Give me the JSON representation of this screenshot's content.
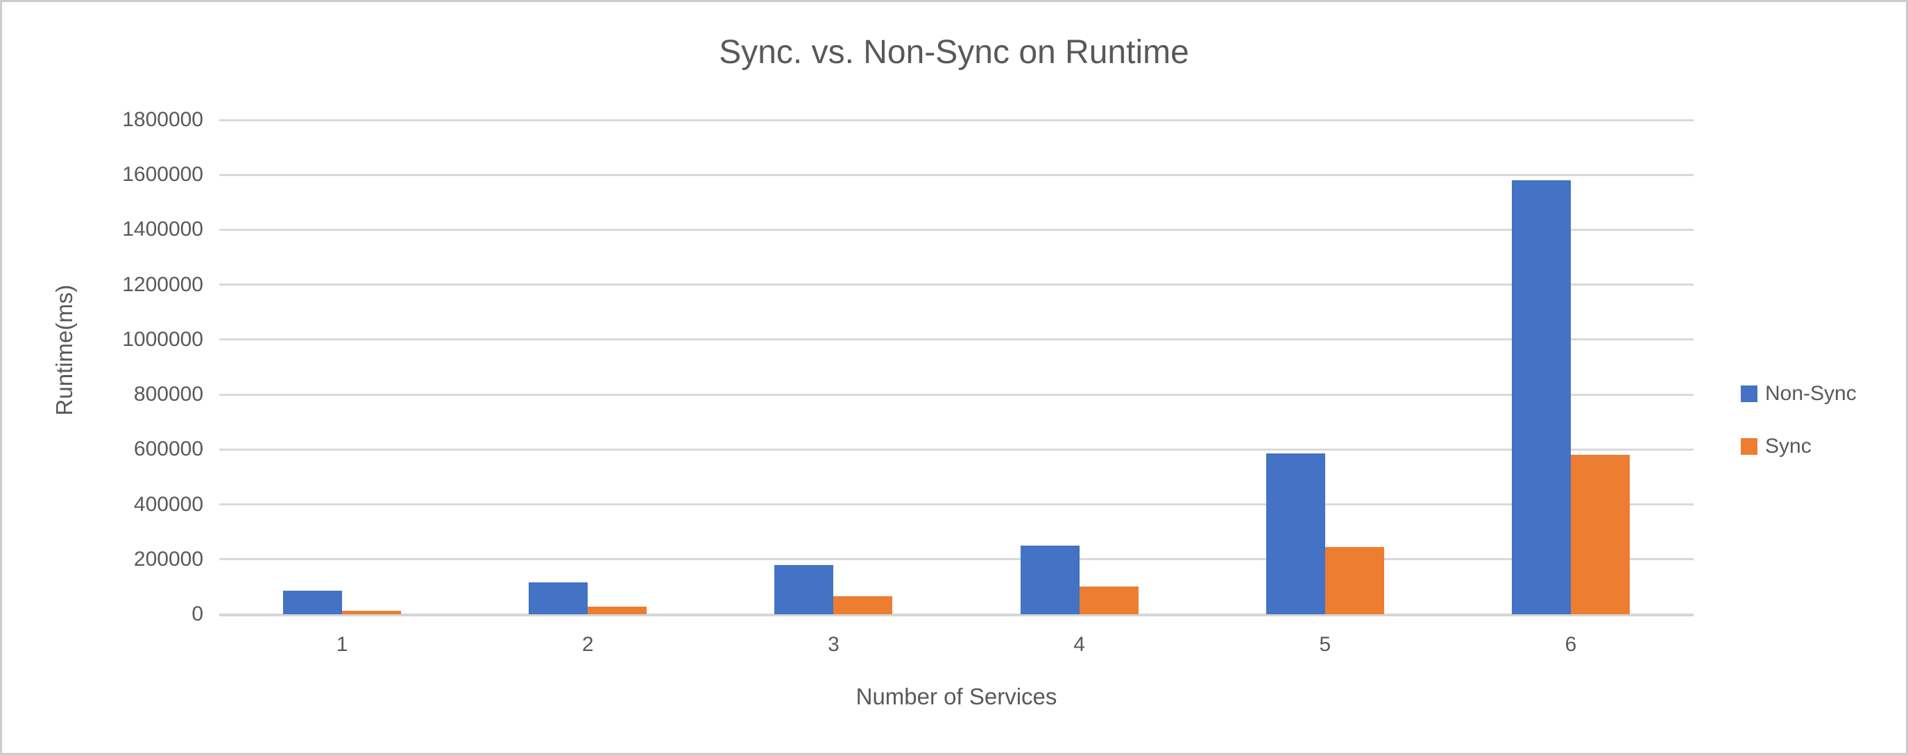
{
  "window": {
    "background": "#ffffff",
    "border_color": "#cdcdcd"
  },
  "chart_data": {
    "type": "bar",
    "title": "Sync. vs. Non-Sync on Runtime",
    "xlabel": "Number of Services",
    "ylabel": "Runtime(ms)",
    "categories": [
      "1",
      "2",
      "3",
      "4",
      "5",
      "6"
    ],
    "series": [
      {
        "name": "Non-Sync",
        "color": "#4472C4",
        "values": [
          85000,
          115000,
          180000,
          250000,
          585000,
          1580000
        ]
      },
      {
        "name": "Sync",
        "color": "#ED7D31",
        "values": [
          13000,
          28000,
          65000,
          100000,
          245000,
          580000
        ]
      }
    ],
    "ylim": [
      0,
      1800000
    ],
    "yticks": [
      0,
      200000,
      400000,
      600000,
      800000,
      1000000,
      1200000,
      1400000,
      1600000,
      1800000
    ],
    "grid": "horizontal",
    "legend_position": "right",
    "legend_labels": [
      "Non-Sync",
      "Sync"
    ],
    "colors": {
      "text": "#595959",
      "gridline": "#D9D9D9",
      "axis_line": "#D6D6D6"
    }
  }
}
